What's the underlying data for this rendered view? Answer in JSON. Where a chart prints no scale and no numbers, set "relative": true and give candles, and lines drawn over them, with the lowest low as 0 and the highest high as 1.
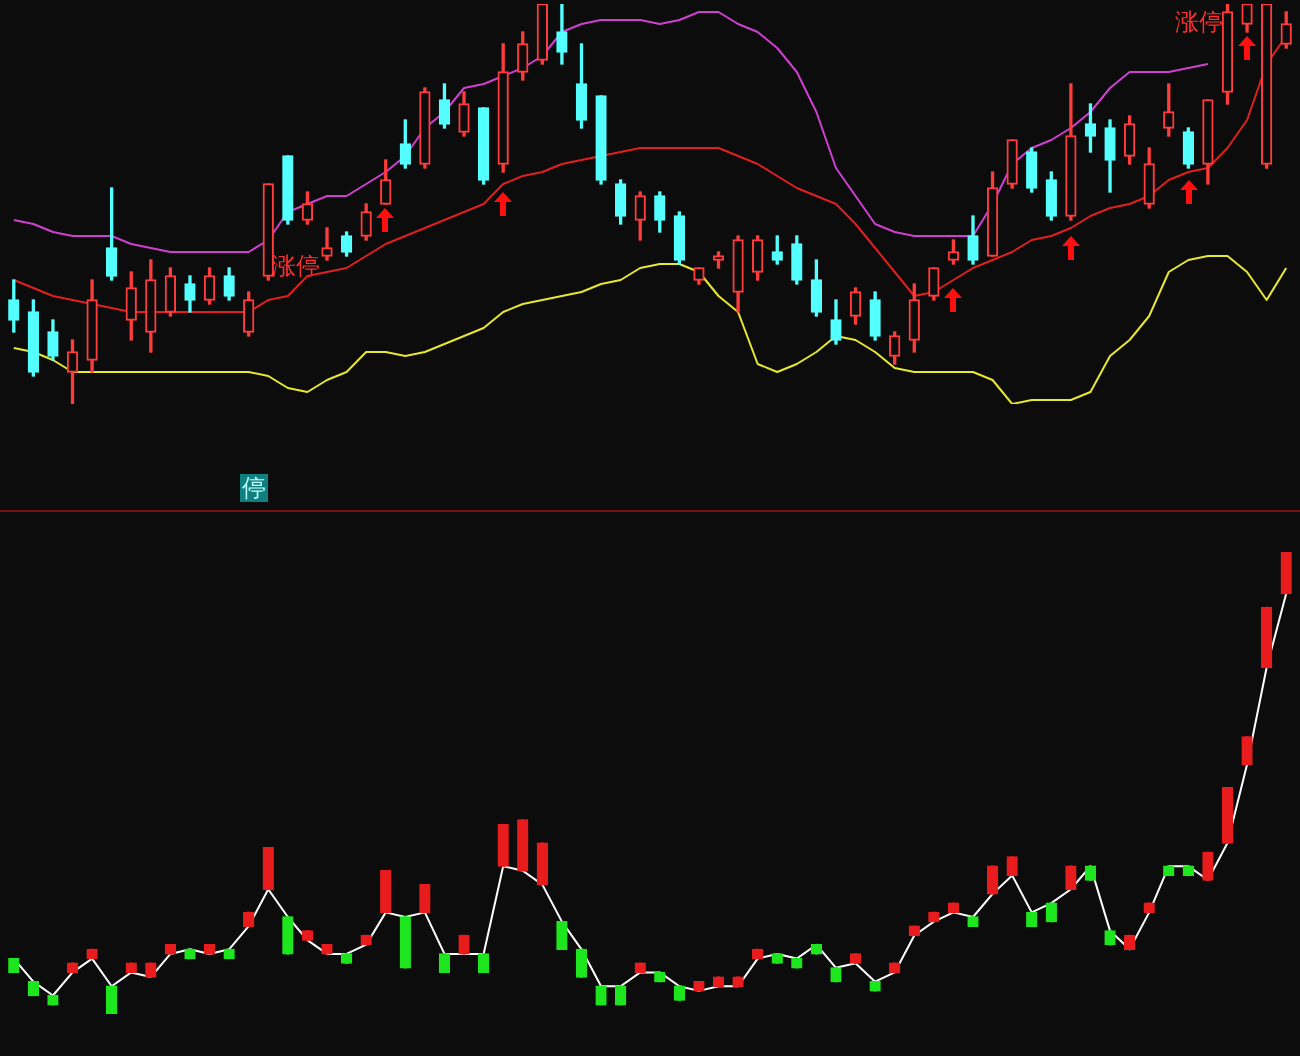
{
  "chart_data": [
    {
      "type": "candlestick",
      "relative": true,
      "categories": [
        null,
        null,
        null,
        null,
        null,
        null,
        null,
        null,
        null,
        null,
        null,
        null,
        null,
        null,
        null,
        null,
        null,
        null,
        null,
        null,
        null,
        null,
        null,
        null,
        null,
        null,
        null,
        null,
        null,
        null,
        null,
        null,
        null,
        null,
        null,
        null,
        null,
        null,
        null,
        null,
        null,
        null,
        null,
        null,
        null,
        null,
        null,
        null,
        null,
        null,
        null,
        null,
        null,
        null,
        null,
        null,
        null,
        null,
        null,
        null,
        null,
        null,
        null,
        null,
        null,
        null
      ],
      "ohlc": [
        [
          0.26,
          0.31,
          0.18,
          0.21
        ],
        [
          0.23,
          0.26,
          0.07,
          0.08
        ],
        [
          0.18,
          0.21,
          0.11,
          0.12
        ],
        [
          0.08,
          0.16,
          0,
          0.13
        ],
        [
          0.11,
          0.31,
          0.08,
          0.26
        ],
        [
          0.39,
          0.54,
          0.31,
          0.32
        ],
        [
          0.21,
          0.33,
          0.16,
          0.29
        ],
        [
          0.18,
          0.36,
          0.13,
          0.31
        ],
        [
          0.23,
          0.34,
          0.22,
          0.32
        ],
        [
          0.3,
          0.32,
          0.23,
          0.26
        ],
        [
          0.26,
          0.34,
          0.25,
          0.32
        ],
        [
          0.32,
          0.34,
          0.26,
          0.27
        ],
        [
          0.18,
          0.28,
          0.17,
          0.26
        ],
        [
          0.32,
          0.55,
          0.31,
          0.55
        ],
        [
          0.62,
          0.62,
          0.45,
          0.46
        ],
        [
          0.46,
          0.53,
          0.45,
          0.5
        ],
        [
          0.37,
          0.44,
          0.36,
          0.39
        ],
        [
          0.42,
          0.43,
          0.37,
          0.38
        ],
        [
          0.42,
          0.5,
          0.41,
          0.48
        ],
        [
          0.5,
          0.61,
          0.5,
          0.56
        ],
        [
          0.65,
          0.71,
          0.59,
          0.6
        ],
        [
          0.6,
          0.79,
          0.59,
          0.78
        ],
        [
          0.76,
          0.8,
          0.69,
          0.7
        ],
        [
          0.68,
          0.78,
          0.67,
          0.75
        ],
        [
          0.74,
          0.74,
          0.55,
          0.56
        ],
        [
          0.6,
          0.9,
          0.58,
          0.83
        ],
        [
          0.83,
          0.93,
          0.81,
          0.9
        ],
        [
          0.86,
          1,
          0.85,
          1
        ],
        [
          0.93,
          1,
          0.85,
          0.88
        ],
        [
          0.8,
          0.9,
          0.69,
          0.71
        ],
        [
          0.77,
          0.77,
          0.55,
          0.56
        ],
        [
          0.55,
          0.56,
          0.45,
          0.47
        ],
        [
          0.46,
          0.53,
          0.41,
          0.52
        ],
        [
          0.52,
          0.53,
          0.43,
          0.46
        ],
        [
          0.47,
          0.48,
          0.35,
          0.36
        ],
        [
          0.31,
          0.34,
          0.3,
          0.34
        ],
        [
          0.36,
          0.38,
          0.34,
          0.37
        ],
        [
          0.28,
          0.42,
          0.23,
          0.41
        ],
        [
          0.33,
          0.42,
          0.31,
          0.41
        ],
        [
          0.38,
          0.42,
          0.35,
          0.36
        ],
        [
          0.4,
          0.42,
          0.3,
          0.31
        ],
        [
          0.31,
          0.36,
          0.22,
          0.23
        ],
        [
          0.21,
          0.26,
          0.15,
          0.16
        ],
        [
          0.22,
          0.29,
          0.2,
          0.28
        ],
        [
          0.26,
          0.28,
          0.16,
          0.17
        ],
        [
          0.12,
          0.18,
          0.1,
          0.17
        ],
        [
          0.16,
          0.3,
          0.13,
          0.26
        ],
        [
          0.27,
          0.34,
          0.26,
          0.34
        ],
        [
          0.36,
          0.41,
          0.35,
          0.38
        ],
        [
          0.42,
          0.47,
          0.35,
          0.36
        ],
        [
          0.37,
          0.58,
          0.37,
          0.54
        ],
        [
          0.55,
          0.66,
          0.54,
          0.66
        ],
        [
          0.63,
          0.64,
          0.53,
          0.54
        ],
        [
          0.56,
          0.58,
          0.46,
          0.47
        ],
        [
          0.47,
          0.8,
          0.46,
          0.67
        ],
        [
          0.7,
          0.75,
          0.63,
          0.67
        ],
        [
          0.69,
          0.71,
          0.53,
          0.61
        ],
        [
          0.62,
          0.72,
          0.6,
          0.7
        ],
        [
          0.5,
          0.64,
          0.49,
          0.6
        ],
        [
          0.69,
          0.8,
          0.67,
          0.73
        ],
        [
          0.68,
          0.69,
          0.59,
          0.6
        ],
        [
          0.6,
          0.76,
          0.55,
          0.76
        ],
        [
          0.78,
          1,
          0.75,
          0.98
        ],
        [
          0.95,
          1,
          0.93,
          1
        ],
        [
          0.6,
          1,
          0.59,
          1
        ],
        [
          0.9,
          0.98,
          0.89,
          0.95
        ]
      ],
      "colors": [
        "#54ffff",
        "#54ffff",
        "#54ffff",
        "#ff3c3c",
        "#ff3c3c",
        "#54ffff",
        "#ff3c3c",
        "#ff3c3c",
        "#ff3c3c",
        "#54ffff",
        "#ff3c3c",
        "#54ffff",
        "#ff3c3c",
        "#ff3c3c",
        "#54ffff",
        "#ff3c3c",
        "#ff3c3c",
        "#54ffff",
        "#ff3c3c",
        "#ff3c3c",
        "#54ffff",
        "#ff3c3c",
        "#54ffff",
        "#ff3c3c",
        "#54ffff",
        "#ff3c3c",
        "#ff3c3c",
        "#ff3c3c",
        "#54ffff",
        "#54ffff",
        "#54ffff",
        "#54ffff",
        "#ff3c3c",
        "#54ffff",
        "#54ffff",
        "#ff3c3c",
        "#ff3c3c",
        "#ff3c3c",
        "#ff3c3c",
        "#54ffff",
        "#54ffff",
        "#54ffff",
        "#54ffff",
        "#ff3c3c",
        "#54ffff",
        "#ff3c3c",
        "#ff3c3c",
        "#ff3c3c",
        "#ff3c3c",
        "#54ffff",
        "#ff3c3c",
        "#ff3c3c",
        "#54ffff",
        "#54ffff",
        "#ff3c3c",
        "#54ffff",
        "#54ffff",
        "#ff3c3c",
        "#ff3c3c",
        "#ff3c3c",
        "#54ffff",
        "#ff3c3c",
        "#ff3c3c",
        "#ff3c3c",
        "#ff3c3c",
        "#ff3c3c"
      ],
      "series": [
        {
          "type": "line",
          "color": "#d040d0",
          "values": [
            0.46,
            0.45,
            0.43,
            0.42,
            0.42,
            0.42,
            0.4,
            0.39,
            0.38,
            0.38,
            0.38,
            0.38,
            0.38,
            0.41,
            0.48,
            0.5,
            0.52,
            0.52,
            0.55,
            0.58,
            0.62,
            0.69,
            0.73,
            0.79,
            0.8,
            0.82,
            0.84,
            0.87,
            0.93,
            0.95,
            0.96,
            0.96,
            0.96,
            0.95,
            0.96,
            0.98,
            0.98,
            0.95,
            0.93,
            0.89,
            0.83,
            0.73,
            0.59,
            0.52,
            0.45,
            0.43,
            0.42,
            0.42,
            0.42,
            0.42,
            0.5,
            0.6,
            0.64,
            0.66,
            0.69,
            0.73,
            0.79,
            0.83,
            0.83,
            0.83,
            0.84,
            0.85,
            null,
            null,
            null,
            null
          ]
        },
        {
          "type": "line",
          "color": "#e02020",
          "values": [
            0.31,
            0.29,
            0.27,
            0.26,
            0.25,
            0.24,
            0.23,
            0.23,
            0.23,
            0.23,
            0.23,
            0.23,
            0.23,
            0.26,
            0.27,
            0.32,
            0.33,
            0.34,
            0.37,
            0.4,
            0.42,
            0.44,
            0.46,
            0.48,
            0.5,
            0.55,
            0.57,
            0.58,
            0.6,
            0.61,
            0.62,
            0.63,
            0.64,
            0.64,
            0.64,
            0.64,
            0.64,
            0.62,
            0.6,
            0.57,
            0.54,
            0.52,
            0.5,
            0.45,
            0.39,
            0.33,
            0.27,
            0.28,
            0.31,
            0.34,
            0.36,
            0.38,
            0.41,
            0.42,
            0.44,
            0.47,
            0.49,
            0.5,
            0.52,
            0.56,
            0.58,
            0.59,
            0.64,
            0.71,
            0.85,
            0.92
          ]
        },
        {
          "type": "line",
          "color": "#e8e830",
          "values": [
            0.14,
            0.13,
            0.11,
            0.08,
            0.08,
            0.08,
            0.08,
            0.08,
            0.08,
            0.08,
            0.08,
            0.08,
            0.08,
            0.07,
            0.04,
            0.03,
            0.06,
            0.08,
            0.13,
            0.13,
            0.12,
            0.13,
            0.15,
            0.17,
            0.19,
            0.23,
            0.25,
            0.26,
            0.27,
            0.28,
            0.3,
            0.31,
            0.34,
            0.35,
            0.35,
            0.33,
            0.27,
            0.23,
            0.1,
            0.08,
            0.1,
            0.13,
            0.17,
            0.16,
            0.13,
            0.09,
            0.08,
            0.08,
            0.08,
            0.08,
            0.06,
            0,
            0.01,
            0.01,
            0.01,
            0.03,
            0.12,
            0.16,
            0.22,
            0.33,
            0.36,
            0.37,
            0.37,
            0.33,
            0.26,
            0.34
          ]
        }
      ],
      "annotations": [
        "涨停",
        "涨停",
        "停"
      ]
    },
    {
      "type": "candlestick",
      "relative": true,
      "categories": [
        null,
        null,
        null,
        null,
        null,
        null,
        null,
        null,
        null,
        null,
        null,
        null,
        null,
        null,
        null,
        null,
        null,
        null,
        null,
        null,
        null,
        null,
        null,
        null,
        null,
        null,
        null,
        null,
        null,
        null,
        null,
        null,
        null,
        null,
        null,
        null,
        null,
        null,
        null,
        null,
        null,
        null,
        null,
        null,
        null,
        null,
        null,
        null,
        null,
        null,
        null,
        null,
        null,
        null,
        null,
        null,
        null,
        null,
        null,
        null,
        null,
        null,
        null,
        null,
        null,
        null
      ],
      "ohlc": [
        [
          0.12,
          0.12,
          0.09,
          0.09
        ],
        [
          0.07,
          0.07,
          0.04,
          0.04
        ],
        [
          0.04,
          0.04,
          0.02,
          0.02
        ],
        [
          0.09,
          0.11,
          0.09,
          0.11
        ],
        [
          0.12,
          0.14,
          0.12,
          0.14
        ],
        [
          0.06,
          0.06,
          0,
          0
        ],
        [
          0.09,
          0.11,
          0.09,
          0.11
        ],
        [
          0.08,
          0.11,
          0.08,
          0.11
        ],
        [
          0.13,
          0.15,
          0.13,
          0.15
        ],
        [
          0.14,
          0.14,
          0.12,
          0.12
        ],
        [
          0.13,
          0.15,
          0.13,
          0.15
        ],
        [
          0.14,
          0.14,
          0.12,
          0.12
        ],
        [
          0.19,
          0.22,
          0.19,
          0.22
        ],
        [
          0.27,
          0.36,
          0.27,
          0.36
        ],
        [
          0.21,
          0.21,
          0.13,
          0.13
        ],
        [
          0.16,
          0.18,
          0.16,
          0.18
        ],
        [
          0.13,
          0.15,
          0.13,
          0.15
        ],
        [
          0.13,
          0.13,
          0.11,
          0.11
        ],
        [
          0.15,
          0.17,
          0.15,
          0.17
        ],
        [
          0.22,
          0.31,
          0.22,
          0.31
        ],
        [
          0.21,
          0.21,
          0.1,
          0.1
        ],
        [
          0.22,
          0.28,
          0.22,
          0.28
        ],
        [
          0.13,
          0.13,
          0.09,
          0.09
        ],
        [
          0.13,
          0.17,
          0.13,
          0.17
        ],
        [
          0.13,
          0.13,
          0.09,
          0.09
        ],
        [
          0.32,
          0.41,
          0.32,
          0.41
        ],
        [
          0.31,
          0.42,
          0.31,
          0.42
        ],
        [
          0.28,
          0.37,
          0.28,
          0.37
        ],
        [
          0.2,
          0.2,
          0.14,
          0.14
        ],
        [
          0.14,
          0.14,
          0.08,
          0.08
        ],
        [
          0.06,
          0.06,
          0.02,
          0.02
        ],
        [
          0.06,
          0.06,
          0.02,
          0.02
        ],
        [
          0.09,
          0.11,
          0.09,
          0.11
        ],
        [
          0.09,
          0.09,
          0.07,
          0.07
        ],
        [
          0.06,
          0.06,
          0.03,
          0.03
        ],
        [
          0.05,
          0.07,
          0.05,
          0.07
        ],
        [
          0.06,
          0.08,
          0.06,
          0.08
        ],
        [
          0.06,
          0.08,
          0.06,
          0.08
        ],
        [
          0.12,
          0.14,
          0.12,
          0.14
        ],
        [
          0.13,
          0.13,
          0.11,
          0.11
        ],
        [
          0.12,
          0.12,
          0.1,
          0.1
        ],
        [
          0.15,
          0.15,
          0.13,
          0.13
        ],
        [
          0.1,
          0.1,
          0.07,
          0.07
        ],
        [
          0.11,
          0.13,
          0.11,
          0.13
        ],
        [
          0.07,
          0.07,
          0.05,
          0.05
        ],
        [
          0.09,
          0.11,
          0.09,
          0.11
        ],
        [
          0.17,
          0.19,
          0.17,
          0.19
        ],
        [
          0.2,
          0.22,
          0.2,
          0.22
        ],
        [
          0.22,
          0.24,
          0.22,
          0.24
        ],
        [
          0.21,
          0.21,
          0.19,
          0.19
        ],
        [
          0.26,
          0.32,
          0.26,
          0.32
        ],
        [
          0.3,
          0.34,
          0.3,
          0.34
        ],
        [
          0.22,
          0.22,
          0.19,
          0.19
        ],
        [
          0.24,
          0.24,
          0.2,
          0.2
        ],
        [
          0.27,
          0.32,
          0.27,
          0.32
        ],
        [
          0.32,
          0.32,
          0.29,
          0.29
        ],
        [
          0.18,
          0.18,
          0.15,
          0.15
        ],
        [
          0.14,
          0.17,
          0.14,
          0.17
        ],
        [
          0.22,
          0.24,
          0.22,
          0.24
        ],
        [
          0.32,
          0.32,
          0.3,
          0.3
        ],
        [
          0.32,
          0.32,
          0.3,
          0.3
        ],
        [
          0.29,
          0.35,
          0.29,
          0.35
        ],
        [
          0.37,
          0.49,
          0.37,
          0.49
        ],
        [
          0.54,
          0.6,
          0.54,
          0.6
        ],
        [
          0.75,
          0.88,
          0.75,
          0.88
        ],
        [
          0.91,
          1,
          0.91,
          1
        ]
      ],
      "colors": [
        "#1ee61e",
        "#1ee61e",
        "#1ee61e",
        "#e81c1c",
        "#e81c1c",
        "#1ee61e",
        "#e81c1c",
        "#e81c1c",
        "#e81c1c",
        "#1ee61e",
        "#e81c1c",
        "#1ee61e",
        "#e81c1c",
        "#e81c1c",
        "#1ee61e",
        "#e81c1c",
        "#e81c1c",
        "#1ee61e",
        "#e81c1c",
        "#e81c1c",
        "#1ee61e",
        "#e81c1c",
        "#1ee61e",
        "#e81c1c",
        "#1ee61e",
        "#e81c1c",
        "#e81c1c",
        "#e81c1c",
        "#1ee61e",
        "#1ee61e",
        "#1ee61e",
        "#1ee61e",
        "#e81c1c",
        "#1ee61e",
        "#1ee61e",
        "#e81c1c",
        "#e81c1c",
        "#e81c1c",
        "#e81c1c",
        "#1ee61e",
        "#1ee61e",
        "#1ee61e",
        "#1ee61e",
        "#e81c1c",
        "#1ee61e",
        "#e81c1c",
        "#e81c1c",
        "#e81c1c",
        "#e81c1c",
        "#1ee61e",
        "#e81c1c",
        "#e81c1c",
        "#1ee61e",
        "#1ee61e",
        "#e81c1c",
        "#1ee61e",
        "#1ee61e",
        "#e81c1c",
        "#e81c1c",
        "#1ee61e",
        "#1ee61e",
        "#e81c1c",
        "#e81c1c",
        "#e81c1c",
        "#e81c1c",
        "#e81c1c"
      ],
      "series": [
        {
          "type": "line",
          "color": "#ffffff",
          "values": [
            0.12,
            0.07,
            0.04,
            0.09,
            0.12,
            0.06,
            0.09,
            0.08,
            0.13,
            0.14,
            0.13,
            0.14,
            0.19,
            0.27,
            0.21,
            0.16,
            0.13,
            0.13,
            0.15,
            0.22,
            0.21,
            0.22,
            0.13,
            0.13,
            0.13,
            0.32,
            0.31,
            0.28,
            0.2,
            0.14,
            0.06,
            0.06,
            0.09,
            0.09,
            0.06,
            0.05,
            0.06,
            0.06,
            0.12,
            0.13,
            0.12,
            0.15,
            0.1,
            0.11,
            0.07,
            0.09,
            0.17,
            0.2,
            0.22,
            0.21,
            0.26,
            0.3,
            0.22,
            0.24,
            0.27,
            0.32,
            0.18,
            0.14,
            0.22,
            0.32,
            0.32,
            0.29,
            0.37,
            0.54,
            0.75,
            0.91
          ]
        }
      ]
    }
  ]
}
